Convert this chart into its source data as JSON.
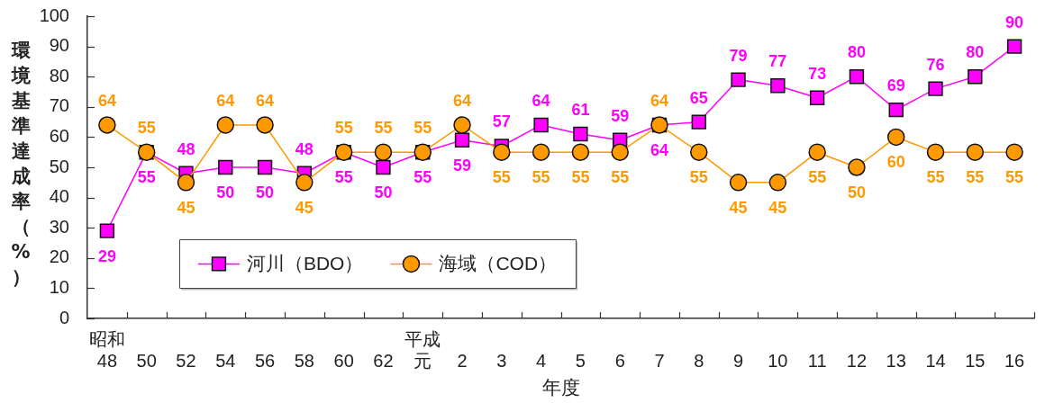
{
  "chart_data": {
    "type": "line",
    "xlabel": "年度",
    "ylabel": "環境基準達成率（%）",
    "categories": [
      "昭和48",
      "50",
      "52",
      "54",
      "56",
      "58",
      "60",
      "62",
      "平成元",
      "2",
      "3",
      "4",
      "5",
      "6",
      "7",
      "8",
      "9",
      "10",
      "11",
      "12",
      "13",
      "14",
      "15",
      "16"
    ],
    "series": [
      {
        "name": "河川（BDO）",
        "color": "#ff00ff",
        "marker": "square",
        "values": [
          29,
          55,
          48,
          50,
          50,
          48,
          55,
          50,
          55,
          59,
          57,
          64,
          61,
          59,
          64,
          65,
          79,
          77,
          73,
          80,
          69,
          76,
          80,
          90
        ]
      },
      {
        "name": "海域（COD）",
        "color": "#ff9900",
        "marker": "circle",
        "values": [
          64,
          55,
          45,
          64,
          64,
          45,
          55,
          55,
          55,
          64,
          55,
          55,
          55,
          55,
          64,
          55,
          45,
          45,
          55,
          50,
          60,
          55,
          55,
          55
        ]
      }
    ],
    "ylim": [
      0,
      100
    ],
    "yticks": [
      0,
      10,
      20,
      30,
      40,
      50,
      60,
      70,
      80,
      90,
      100
    ],
    "legend": "bottom left",
    "data_labels": true
  }
}
